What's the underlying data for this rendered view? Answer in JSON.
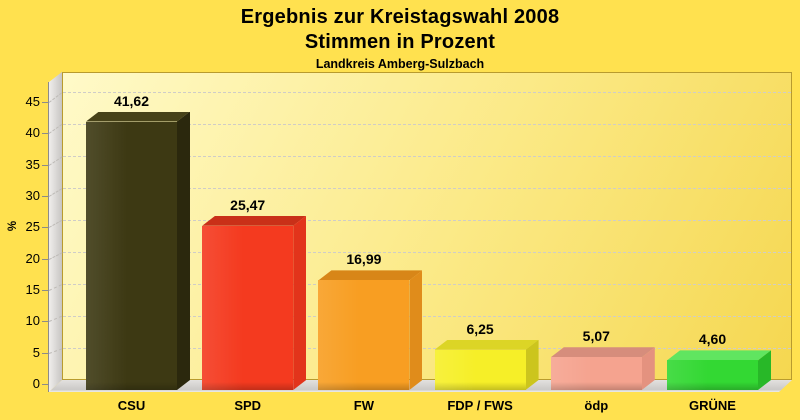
{
  "header": {
    "title_line1": "Ergebnis zur Kreistagswahl 2008",
    "title_line2": "Stimmen in Prozent",
    "subtitle": "Landkreis Amberg-Sulzbach"
  },
  "y_axis": {
    "unit_label": "%",
    "tick_values": [
      0,
      5,
      10,
      15,
      20,
      25,
      30,
      35,
      40,
      45
    ]
  },
  "chart_data": {
    "type": "bar",
    "title": "Ergebnis zur Kreistagswahl 2008 — Stimmen in Prozent",
    "subtitle": "Landkreis Amberg-Sulzbach",
    "categories": [
      "CSU",
      "SPD",
      "FW",
      "FDP / FWS",
      "ödp",
      "GRÜNE"
    ],
    "values": [
      41.62,
      25.47,
      16.99,
      6.25,
      5.07,
      4.6
    ],
    "value_labels": [
      "41,62",
      "25,47",
      "16,99",
      "6,25",
      "5,07",
      "4,60"
    ],
    "xlabel": "",
    "ylabel": "%",
    "ylim": [
      0,
      48
    ],
    "grid": true,
    "legend": "none",
    "bar_colors": [
      {
        "party": "CSU",
        "front": "#3D3913",
        "top": "#474218",
        "side": "#2B280D"
      },
      {
        "party": "SPD",
        "front": "#F43A1F",
        "top": "#C93018",
        "side": "#E2341B"
      },
      {
        "party": "FW",
        "front": "#F89E22",
        "top": "#D88618",
        "side": "#E08C1B"
      },
      {
        "party": "FDP / FWS",
        "front": "#F6EF28",
        "top": "#DCD526",
        "side": "#CCC51D"
      },
      {
        "party": "ödp",
        "front": "#F5A38F",
        "top": "#D68D7C",
        "side": "#E4927F"
      },
      {
        "party": "GRÜNE",
        "front": "#33D833",
        "top": "#60E560",
        "side": "#28B828"
      }
    ]
  },
  "colors": {
    "page_background": "#FFE14F",
    "wall_gradient_top": "#FFFAC9",
    "wall_gradient_mid": "#FBE985",
    "wall_gradient_bottom": "#F5D750",
    "side_wall_light": "#F0EEEC",
    "side_wall_dark": "#C7C5C3",
    "floor_light": "#E3E1DF",
    "floor_dark": "#CBC9C7",
    "grid_line": "#CFCCC8",
    "plot_border": "#B89B2E",
    "text": "#000000"
  }
}
